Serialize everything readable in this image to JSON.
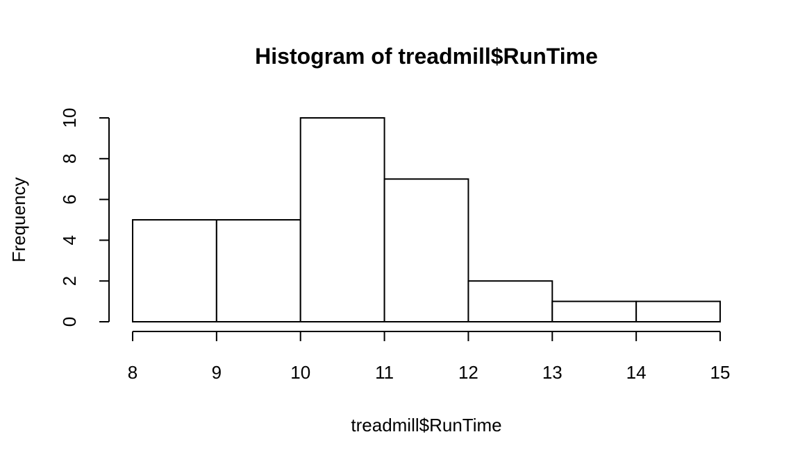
{
  "chart_data": {
    "type": "bar",
    "title": "Histogram of treadmill$RunTime",
    "xlabel": "treadmill$RunTime",
    "ylabel": "Frequency",
    "bins": [
      {
        "start": 8,
        "end": 9,
        "count": 5
      },
      {
        "start": 9,
        "end": 10,
        "count": 5
      },
      {
        "start": 10,
        "end": 11,
        "count": 10
      },
      {
        "start": 11,
        "end": 12,
        "count": 7
      },
      {
        "start": 12,
        "end": 13,
        "count": 2
      },
      {
        "start": 13,
        "end": 14,
        "count": 1
      },
      {
        "start": 14,
        "end": 15,
        "count": 1
      }
    ],
    "xlim": [
      8,
      15
    ],
    "ylim": [
      0,
      10
    ],
    "x_ticks": [
      "8",
      "9",
      "10",
      "11",
      "12",
      "13",
      "14",
      "15"
    ],
    "y_ticks": [
      "0",
      "2",
      "4",
      "6",
      "8",
      "10"
    ],
    "bar_fill": "#ffffff",
    "stroke_color": "#000000",
    "grid": false,
    "legend": "none"
  }
}
